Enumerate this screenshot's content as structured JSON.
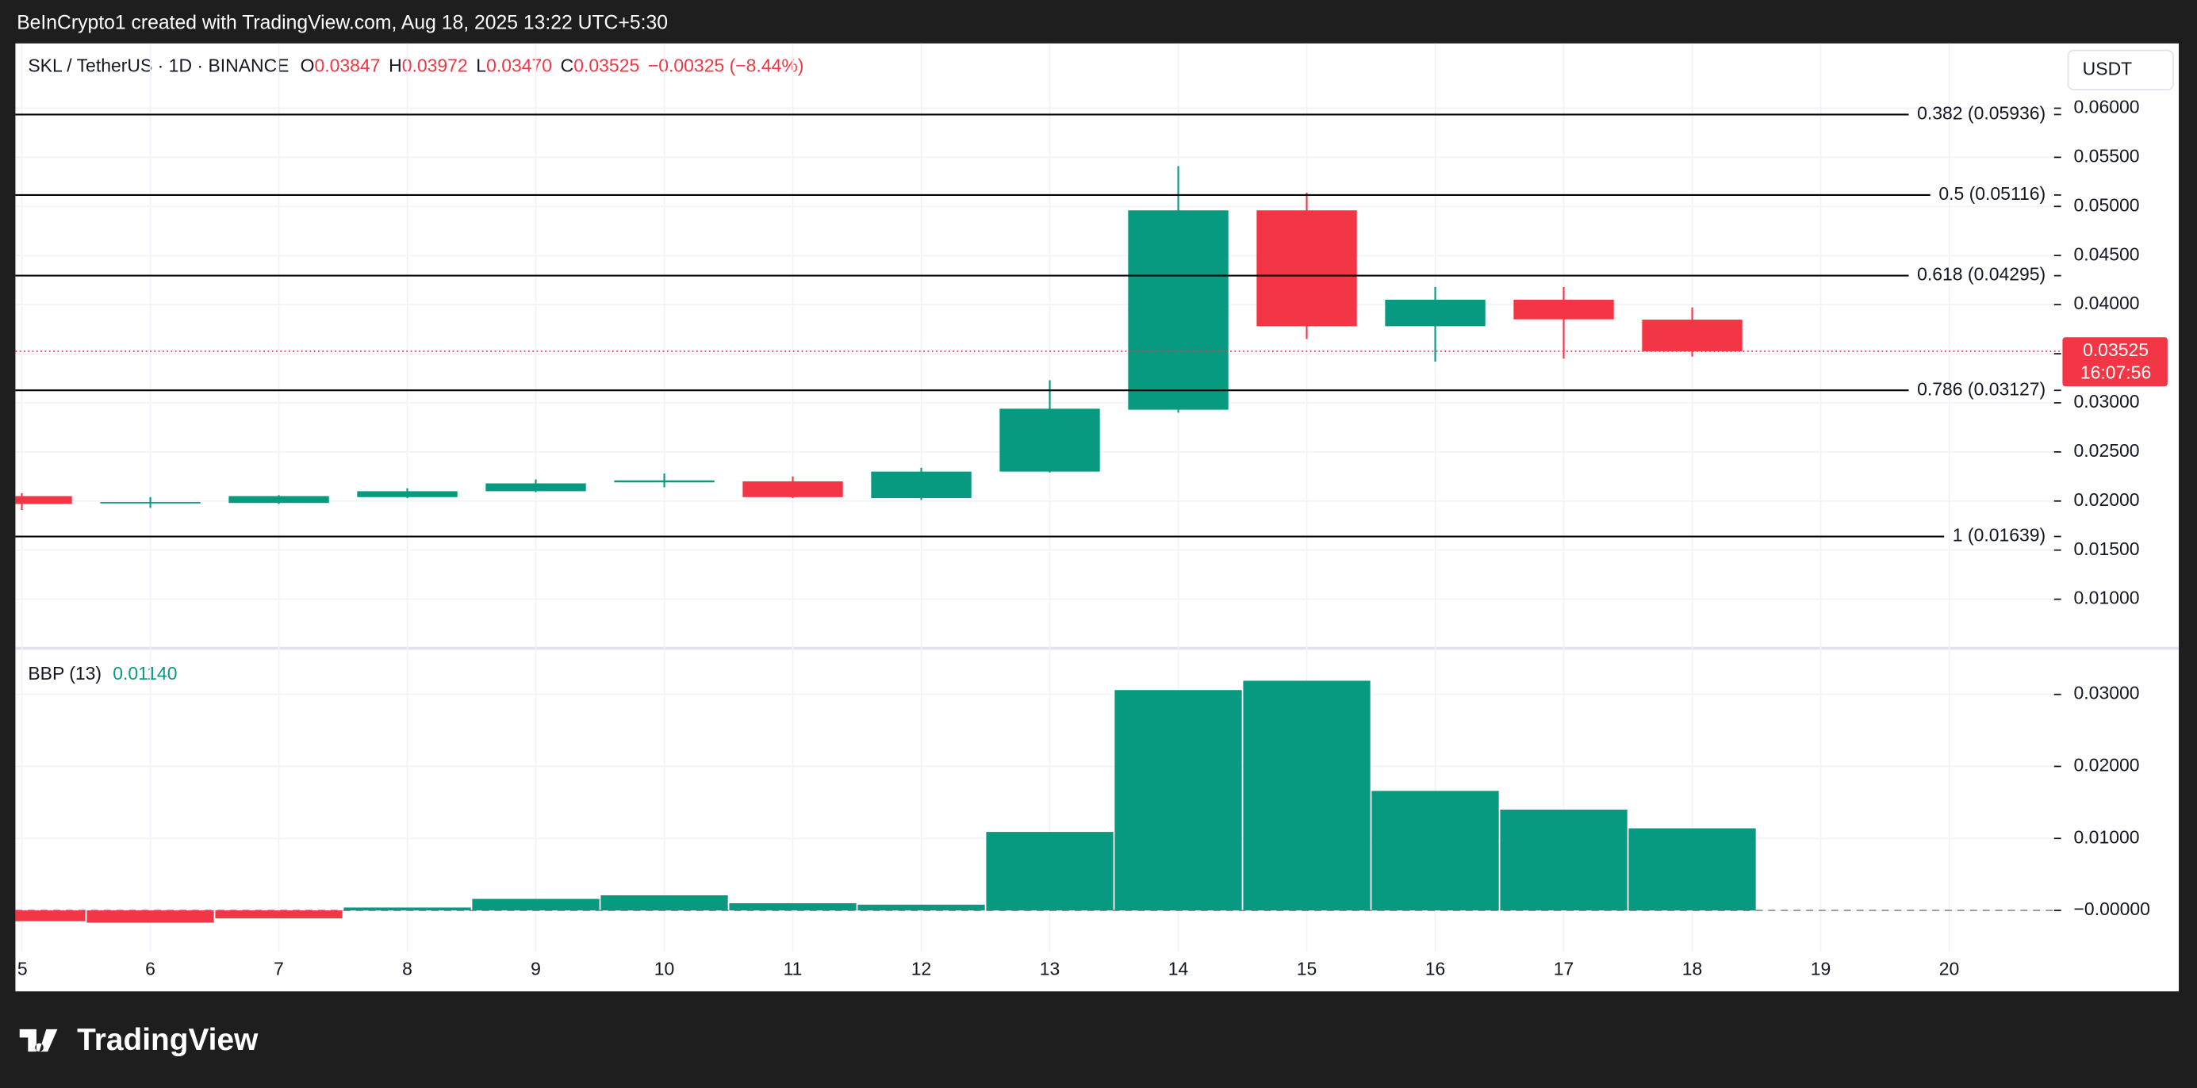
{
  "header": {
    "credit": "BeInCrypto1 created with TradingView.com, Aug 18, 2025 13:22 UTC+5:30",
    "symbol": "SKL / TetherUS · 1D · BINANCE",
    "ohlc_names": [
      "O",
      "H",
      "L",
      "C"
    ],
    "ohlc_labels": [
      "0.03847",
      "0.03972",
      "0.03470",
      "0.03525"
    ],
    "change": "−0.00325 (−8.44%)",
    "currency": "USDT",
    "countdown": "16:07:56"
  },
  "chart_data": [
    {
      "type": "candlestick",
      "x": [
        5,
        6,
        7,
        8,
        9,
        10,
        11,
        12,
        13,
        14,
        15,
        16,
        17,
        18
      ],
      "open": [
        0.0205,
        0.0198,
        0.0198,
        0.0204,
        0.021,
        0.0219,
        0.022,
        0.0203,
        0.023,
        0.0293,
        0.0496,
        0.0378,
        0.0405,
        0.03847
      ],
      "high": [
        0.0208,
        0.0204,
        0.0206,
        0.0213,
        0.0222,
        0.0228,
        0.0225,
        0.0234,
        0.0323,
        0.0541,
        0.0514,
        0.0418,
        0.0418,
        0.03972
      ],
      "low": [
        0.0191,
        0.0193,
        0.0197,
        0.0203,
        0.0209,
        0.0214,
        0.0203,
        0.0201,
        0.0229,
        0.029,
        0.0365,
        0.0342,
        0.0345,
        0.0347
      ],
      "close": [
        0.0197,
        0.0199,
        0.0205,
        0.021,
        0.0218,
        0.0221,
        0.0204,
        0.023,
        0.0294,
        0.0496,
        0.0378,
        0.0405,
        0.0385,
        0.03525
      ],
      "up_color": "#089981",
      "down_color": "#f23645",
      "xlim": [
        4.95,
        20.86
      ],
      "xticks": [
        5,
        6,
        7,
        8,
        9,
        10,
        11,
        12,
        13,
        14,
        15,
        16,
        17,
        18,
        19,
        20
      ],
      "ylim": [
        0.005,
        0.0666
      ],
      "yticks": [
        {
          "value": 0.01,
          "label": "0.01000"
        },
        {
          "value": 0.015,
          "label": "0.01500"
        },
        {
          "value": 0.02,
          "label": "0.02000"
        },
        {
          "value": 0.025,
          "label": "0.02500"
        },
        {
          "value": 0.03,
          "label": "0.03000"
        },
        {
          "value": 0.035,
          "label": "0.03500"
        },
        {
          "value": 0.04,
          "label": "0.04000"
        },
        {
          "value": 0.045,
          "label": "0.04500"
        },
        {
          "value": 0.05,
          "label": "0.05000"
        },
        {
          "value": 0.055,
          "label": "0.05500"
        },
        {
          "value": 0.06,
          "label": "0.06000"
        }
      ],
      "grid": true,
      "levels": [
        {
          "value": 0.05936,
          "label": "0.382 (0.05936)"
        },
        {
          "value": 0.05116,
          "label": "0.5 (0.05116)"
        },
        {
          "value": 0.04295,
          "label": "0.618 (0.04295)"
        },
        {
          "value": 0.03127,
          "label": "0.786 (0.03127)"
        },
        {
          "value": 0.01639,
          "label": "1 (0.01639)"
        }
      ],
      "level_color": "#000000"
    },
    {
      "type": "bar",
      "title": "BBP (13)",
      "value_label": "0.01140",
      "x": [
        5,
        6,
        7,
        8,
        9,
        10,
        11,
        12,
        13,
        14,
        15,
        16,
        17,
        18
      ],
      "values": [
        -0.0015,
        -0.0017,
        -0.0011,
        0.0004,
        0.0016,
        0.0021,
        0.001,
        0.0008,
        0.0109,
        0.0306,
        0.0319,
        0.0166,
        0.014,
        0.0114
      ],
      "up_color": "#089981",
      "down_color": "#f23645",
      "xlim": [
        4.95,
        20.86
      ],
      "ylim": [
        -0.0058,
        0.0364
      ],
      "yticks": [
        {
          "value": 0,
          "label": "−0.00000"
        },
        {
          "value": 0.01,
          "label": "0.01000"
        },
        {
          "value": 0.02,
          "label": "0.02000"
        },
        {
          "value": 0.03,
          "label": "0.03000"
        }
      ],
      "grid": true
    }
  ],
  "footer": {
    "brand": "TradingView"
  }
}
